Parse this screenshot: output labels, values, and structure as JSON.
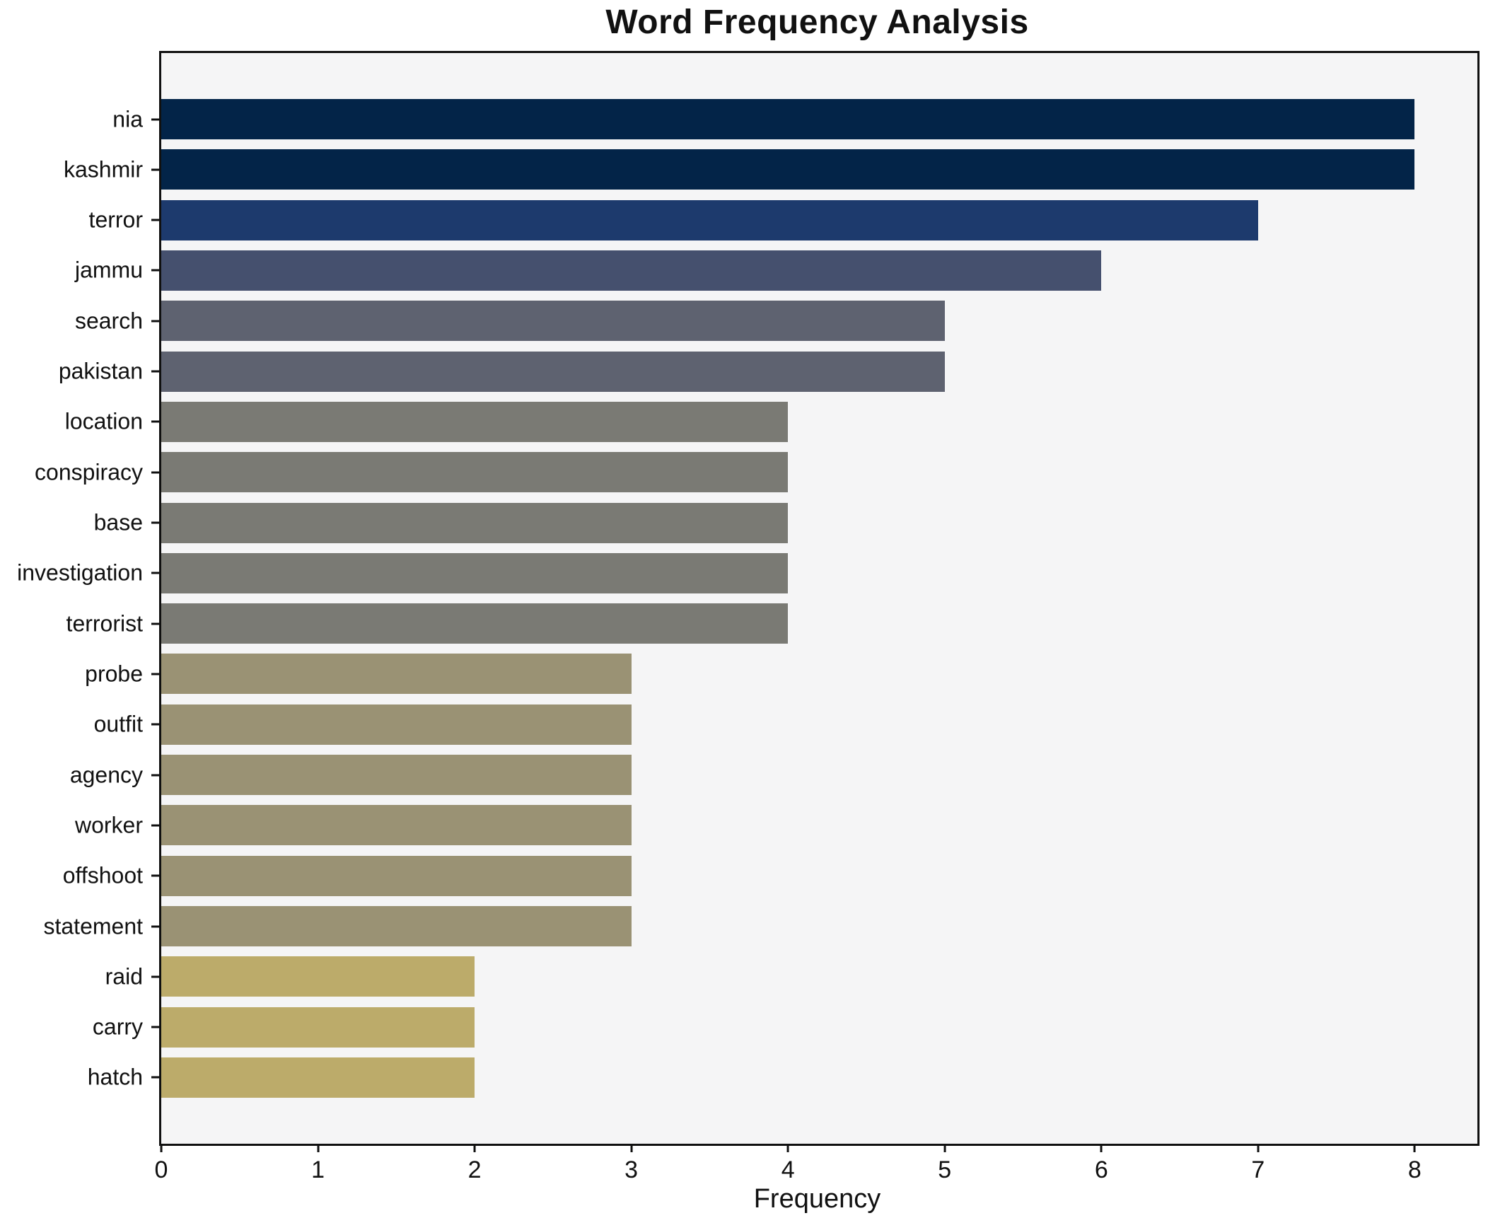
{
  "chart_data": {
    "type": "bar",
    "orientation": "horizontal",
    "title": "Word Frequency Analysis",
    "xlabel": "Frequency",
    "ylabel": "",
    "categories": [
      "nia",
      "kashmir",
      "terror",
      "jammu",
      "search",
      "pakistan",
      "location",
      "conspiracy",
      "base",
      "investigation",
      "terrorist",
      "probe",
      "outfit",
      "agency",
      "worker",
      "offshoot",
      "statement",
      "raid",
      "carry",
      "hatch"
    ],
    "values": [
      8,
      8,
      7,
      6,
      5,
      5,
      4,
      4,
      4,
      4,
      4,
      3,
      3,
      3,
      3,
      3,
      3,
      2,
      2,
      2
    ],
    "xticks": [
      0,
      1,
      2,
      3,
      4,
      5,
      6,
      7,
      8
    ],
    "xlim": [
      0,
      8.4
    ],
    "grid": false,
    "legend": "none",
    "colors_by_value": {
      "8": "#032448",
      "7": "#1d3a6d",
      "6": "#45506e",
      "5": "#5e6270",
      "4": "#7a7a74",
      "3": "#9a9274",
      "2": "#bcab6a"
    },
    "plot_background": "#f5f5f6",
    "figure_background": "#ffffff",
    "spine_color": "#101010"
  }
}
